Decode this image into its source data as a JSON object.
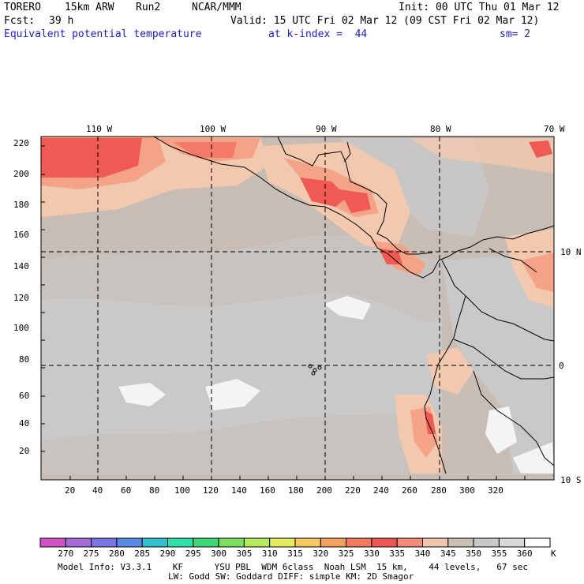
{
  "header": {
    "model": "TORERO",
    "resolution": "15km ARW",
    "run": "Run2",
    "org": "NCAR/MMM",
    "init": "Init: 00 UTC Thu 01 Mar 12",
    "fcst_label": "Fcst:",
    "fcst_hours": "39 h",
    "valid": "Valid: 15 UTC Fri 02 Mar 12 (09 CST Fri 02 Mar 12)",
    "field": "Equivalent potential temperature",
    "level": "at k-index =  44",
    "smooth": "sm= 2"
  },
  "map": {
    "top_labels": [
      "110 W",
      "100 W",
      "90 W",
      "80 W",
      "70 W"
    ],
    "right_labels": [
      "10 N",
      "0",
      "10 S"
    ],
    "y_ticks": [
      "20",
      "40",
      "60",
      "80",
      "100",
      "120",
      "140",
      "160",
      "180",
      "200",
      "220"
    ],
    "x_ticks": [
      "20",
      "40",
      "60",
      "80",
      "100",
      "120",
      "140",
      "160",
      "180",
      "200",
      "220",
      "240",
      "260",
      "280",
      "300",
      "320"
    ],
    "colors": {
      "background": "#c8bdb4",
      "gray": "#c9c9c9",
      "white": "#f4f4f4",
      "peach": "#f2c8ae",
      "salmon": "#f4a387",
      "orange_red": "#f27a66",
      "red": "#f05a55",
      "coast": "#000000"
    }
  },
  "colorbar": {
    "labels": [
      "270",
      "275",
      "280",
      "285",
      "290",
      "295",
      "300",
      "305",
      "310",
      "315",
      "320",
      "325",
      "330",
      "335",
      "340",
      "345",
      "350",
      "355",
      "360"
    ],
    "unit": "K",
    "colors": [
      "#d352c9",
      "#a46ad6",
      "#7a74e6",
      "#5a8ae6",
      "#2fc0d0",
      "#2ee0a8",
      "#3ed878",
      "#7ae05c",
      "#b6ea5a",
      "#e6ec5e",
      "#f6c860",
      "#f3a05c",
      "#f37a5c",
      "#f05555",
      "#f48a78",
      "#f2c6ae",
      "#c9bfb5",
      "#c9c9c9",
      "#d8d8d8",
      "#ffffff"
    ]
  },
  "footer": {
    "line1": "Model Info: V3.3.1    KF      YSU PBL  WDM 6class  Noah LSM  15 km,    44 levels,   67 sec",
    "line2": "LW: Godd SW: Goddard DIFF: simple KM: 2D Smagor"
  }
}
